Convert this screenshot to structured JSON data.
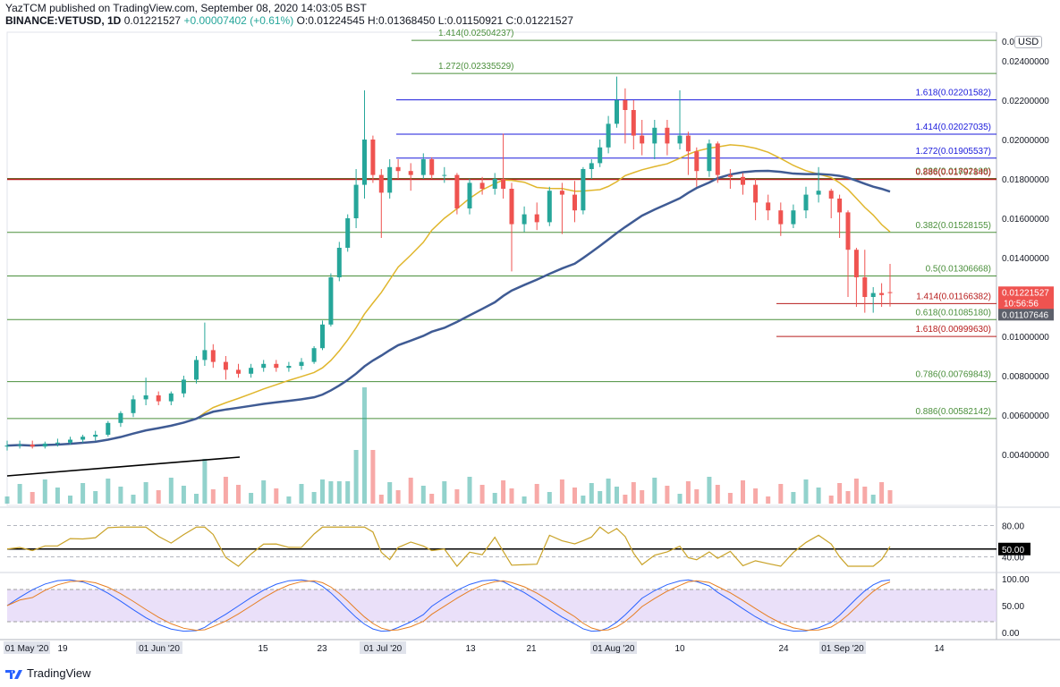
{
  "header": {
    "line1": "YazTCM published on TradingView.com, September 08, 2020 14:03:05 BST",
    "symbol": "BINANCE:VETUSD, 1D",
    "last": "0.01221527",
    "change": "+0.00007402 (+0.61%)",
    "ohlc": "O:0.01224545 H:0.01368450 L:0.01150921 C:0.01221527"
  },
  "brand": {
    "name": "TradingView",
    "icon": "tradingview-logo-icon"
  },
  "currency": "USD",
  "colors": {
    "up": "#26a69a",
    "down": "#ef5350",
    "fib_green": "#4a8f3b",
    "fib_blue": "#1a1adb",
    "fib_red": "#b71c1c",
    "sma_short": "#e0b62c",
    "sma_long": "#3f5b94",
    "rsi": "#c9a227",
    "stoch_k": "#2962ff",
    "stoch_d": "#e67e22",
    "stoch_band": "#e1d3f7"
  },
  "chart_data": {
    "type": "candlestick",
    "y_axis": {
      "labels": [
        "0.02400000",
        "0.02200000",
        "0.02000000",
        "0.01800000",
        "0.01600000",
        "0.01400000",
        "0.01000000",
        "0.00800000",
        "0.00600000",
        "0.00400000"
      ],
      "values": [
        0.024,
        0.022,
        0.02,
        0.018,
        0.016,
        0.014,
        0.01,
        0.008,
        0.006,
        0.004
      ],
      "top_partial": "0.0",
      "range": [
        0.0025,
        0.026
      ]
    },
    "x_axis": {
      "labels": [
        "01 May '20",
        "19",
        "01 Jun '20",
        "15",
        "23",
        "01 Jul '20",
        "13",
        "21",
        "01 Aug '20",
        "10",
        "24",
        "01 Sep '20",
        "14"
      ],
      "highlighted": [
        "01 May '20",
        "01 Jun '20",
        "01 Jul '20",
        "01 Aug '20",
        "01 Sep '20"
      ]
    },
    "price_tags": [
      {
        "label": "0.01221527",
        "sub": "10:56:56",
        "value": 0.01221527,
        "color": "#ef5350"
      },
      {
        "label": "0.01107646",
        "value": 0.01107646,
        "color": "#5d606b"
      }
    ],
    "fib_levels": [
      {
        "label": "1.414(0.02504237)",
        "value": 0.02504237,
        "color": "green",
        "side": "left"
      },
      {
        "label": "1.272(0.02335529)",
        "value": 0.02335529,
        "color": "green",
        "side": "left"
      },
      {
        "label": "1.618(0.02201582)",
        "value": 0.02201582,
        "color": "blue",
        "side": "right"
      },
      {
        "label": "1.414(0.02027035)",
        "value": 0.02027035,
        "color": "blue",
        "side": "right"
      },
      {
        "label": "1.272(0.01905537)",
        "value": 0.01905537,
        "color": "blue",
        "side": "right"
      },
      {
        "label": "0.236(0.01802198)",
        "value": 0.01802198,
        "color": "green",
        "side": "right"
      },
      {
        "label": "0.886(0.01797840)",
        "value": 0.0179784,
        "color": "red",
        "side": "right"
      },
      {
        "label": "0.382(0.01528155)",
        "value": 0.01528155,
        "color": "green",
        "side": "right"
      },
      {
        "label": "0.5(0.01306668)",
        "value": 0.01306668,
        "color": "green",
        "side": "right"
      },
      {
        "label": "1.414(0.01166382)",
        "value": 0.01166382,
        "color": "red",
        "side": "right"
      },
      {
        "label": "0.618(0.01085180)",
        "value": 0.0108518,
        "color": "green",
        "side": "right"
      },
      {
        "label": "1.618(0.00999630)",
        "value": 0.0099963,
        "color": "red",
        "side": "right"
      },
      {
        "label": "0.786(0.00769843)",
        "value": 0.00769843,
        "color": "green",
        "side": "right"
      },
      {
        "label": "0.886(0.00582142)",
        "value": 0.00582142,
        "color": "green",
        "side": "right"
      }
    ],
    "rsi": {
      "labels": [
        "80.00",
        "50.00",
        "40.00"
      ],
      "values": [
        80,
        50,
        40
      ]
    },
    "stoch_rsi": {
      "labels": [
        "100.00",
        "50.00",
        "0.00"
      ],
      "values": [
        100,
        50,
        0
      ]
    },
    "series": [
      {
        "name": "candles",
        "points": [
          {
            "d": 0,
            "o": 0.0044,
            "h": 0.0047,
            "l": 0.0042,
            "c": 0.00445
          },
          {
            "d": 3,
            "o": 0.00445,
            "h": 0.0047,
            "l": 0.0043,
            "c": 0.0045
          },
          {
            "d": 6,
            "o": 0.0045,
            "h": 0.0047,
            "l": 0.0043,
            "c": 0.0044
          },
          {
            "d": 9,
            "o": 0.0044,
            "h": 0.00465,
            "l": 0.0043,
            "c": 0.00455
          },
          {
            "d": 12,
            "o": 0.00455,
            "h": 0.0048,
            "l": 0.0044,
            "c": 0.0046
          },
          {
            "d": 15,
            "o": 0.0046,
            "h": 0.0049,
            "l": 0.0045,
            "c": 0.00475
          },
          {
            "d": 18,
            "o": 0.00475,
            "h": 0.005,
            "l": 0.0046,
            "c": 0.0049
          },
          {
            "d": 21,
            "o": 0.0049,
            "h": 0.0052,
            "l": 0.0047,
            "c": 0.005
          },
          {
            "d": 24,
            "o": 0.005,
            "h": 0.0057,
            "l": 0.0049,
            "c": 0.0056
          },
          {
            "d": 27,
            "o": 0.0056,
            "h": 0.0062,
            "l": 0.0054,
            "c": 0.0061
          },
          {
            "d": 30,
            "o": 0.0061,
            "h": 0.007,
            "l": 0.0059,
            "c": 0.0068
          },
          {
            "d": 33,
            "o": 0.0068,
            "h": 0.0079,
            "l": 0.0065,
            "c": 0.007
          },
          {
            "d": 36,
            "o": 0.007,
            "h": 0.0072,
            "l": 0.0065,
            "c": 0.0067
          },
          {
            "d": 39,
            "o": 0.0067,
            "h": 0.0072,
            "l": 0.0065,
            "c": 0.0071
          },
          {
            "d": 42,
            "o": 0.0071,
            "h": 0.008,
            "l": 0.0069,
            "c": 0.0078
          },
          {
            "d": 45,
            "o": 0.0078,
            "h": 0.009,
            "l": 0.0076,
            "c": 0.0088
          },
          {
            "d": 47,
            "o": 0.0088,
            "h": 0.0107,
            "l": 0.0085,
            "c": 0.0093
          },
          {
            "d": 49,
            "o": 0.0093,
            "h": 0.0096,
            "l": 0.0084,
            "c": 0.0087
          },
          {
            "d": 52,
            "o": 0.0087,
            "h": 0.009,
            "l": 0.0078,
            "c": 0.0083
          },
          {
            "d": 55,
            "o": 0.0083,
            "h": 0.0086,
            "l": 0.0079,
            "c": 0.0081
          },
          {
            "d": 58,
            "o": 0.0081,
            "h": 0.0086,
            "l": 0.0079,
            "c": 0.0084
          },
          {
            "d": 61,
            "o": 0.0084,
            "h": 0.0088,
            "l": 0.0082,
            "c": 0.0086
          },
          {
            "d": 64,
            "o": 0.0086,
            "h": 0.0088,
            "l": 0.0082,
            "c": 0.0084
          },
          {
            "d": 67,
            "o": 0.0084,
            "h": 0.0087,
            "l": 0.0082,
            "c": 0.0085
          },
          {
            "d": 70,
            "o": 0.0085,
            "h": 0.0089,
            "l": 0.0083,
            "c": 0.0087
          },
          {
            "d": 73,
            "o": 0.0087,
            "h": 0.0095,
            "l": 0.0086,
            "c": 0.0094
          },
          {
            "d": 75,
            "o": 0.0094,
            "h": 0.0108,
            "l": 0.0093,
            "c": 0.0106
          },
          {
            "d": 77,
            "o": 0.0106,
            "h": 0.0132,
            "l": 0.0105,
            "c": 0.013
          },
          {
            "d": 79,
            "o": 0.013,
            "h": 0.0148,
            "l": 0.0128,
            "c": 0.0145
          },
          {
            "d": 81,
            "o": 0.0145,
            "h": 0.0162,
            "l": 0.0143,
            "c": 0.016
          },
          {
            "d": 83,
            "o": 0.016,
            "h": 0.0185,
            "l": 0.0155,
            "c": 0.0177
          },
          {
            "d": 85,
            "o": 0.0177,
            "h": 0.0225,
            "l": 0.017,
            "c": 0.02
          },
          {
            "d": 87,
            "o": 0.02,
            "h": 0.0202,
            "l": 0.0178,
            "c": 0.0182
          },
          {
            "d": 89,
            "o": 0.0182,
            "h": 0.0185,
            "l": 0.015,
            "c": 0.0173
          },
          {
            "d": 91,
            "o": 0.0173,
            "h": 0.019,
            "l": 0.017,
            "c": 0.0186
          },
          {
            "d": 93,
            "o": 0.0186,
            "h": 0.019,
            "l": 0.018,
            "c": 0.0184
          },
          {
            "d": 96,
            "o": 0.0184,
            "h": 0.0188,
            "l": 0.0174,
            "c": 0.0182
          },
          {
            "d": 99,
            "o": 0.0182,
            "h": 0.0193,
            "l": 0.018,
            "c": 0.019
          },
          {
            "d": 101,
            "o": 0.019,
            "h": 0.0191,
            "l": 0.018,
            "c": 0.0182
          },
          {
            "d": 104,
            "o": 0.0182,
            "h": 0.0186,
            "l": 0.0178,
            "c": 0.0182
          },
          {
            "d": 107,
            "o": 0.0182,
            "h": 0.0183,
            "l": 0.0162,
            "c": 0.0165
          },
          {
            "d": 110,
            "o": 0.0165,
            "h": 0.018,
            "l": 0.0162,
            "c": 0.0178
          },
          {
            "d": 113,
            "o": 0.0178,
            "h": 0.0181,
            "l": 0.0172,
            "c": 0.0175
          },
          {
            "d": 116,
            "o": 0.0175,
            "h": 0.0183,
            "l": 0.0172,
            "c": 0.018
          },
          {
            "d": 118,
            "o": 0.018,
            "h": 0.0203,
            "l": 0.017,
            "c": 0.0175
          },
          {
            "d": 120,
            "o": 0.0175,
            "h": 0.0178,
            "l": 0.0133,
            "c": 0.0157
          },
          {
            "d": 123,
            "o": 0.0157,
            "h": 0.0166,
            "l": 0.0153,
            "c": 0.0162
          },
          {
            "d": 126,
            "o": 0.0162,
            "h": 0.0168,
            "l": 0.0154,
            "c": 0.0158
          },
          {
            "d": 129,
            "o": 0.0158,
            "h": 0.0176,
            "l": 0.0156,
            "c": 0.0174
          },
          {
            "d": 132,
            "o": 0.0174,
            "h": 0.0178,
            "l": 0.0152,
            "c": 0.0172
          },
          {
            "d": 135,
            "o": 0.0172,
            "h": 0.0179,
            "l": 0.0158,
            "c": 0.0164
          },
          {
            "d": 137,
            "o": 0.0164,
            "h": 0.0186,
            "l": 0.0162,
            "c": 0.0185
          },
          {
            "d": 139,
            "o": 0.0185,
            "h": 0.019,
            "l": 0.018,
            "c": 0.0188
          },
          {
            "d": 141,
            "o": 0.0188,
            "h": 0.02,
            "l": 0.0186,
            "c": 0.0196
          },
          {
            "d": 143,
            "o": 0.0196,
            "h": 0.0212,
            "l": 0.0193,
            "c": 0.0208
          },
          {
            "d": 145,
            "o": 0.0208,
            "h": 0.0232,
            "l": 0.0206,
            "c": 0.022
          },
          {
            "d": 147,
            "o": 0.022,
            "h": 0.0226,
            "l": 0.0198,
            "c": 0.0215
          },
          {
            "d": 149,
            "o": 0.0215,
            "h": 0.022,
            "l": 0.0195,
            "c": 0.0202
          },
          {
            "d": 151,
            "o": 0.0202,
            "h": 0.021,
            "l": 0.0192,
            "c": 0.0198
          },
          {
            "d": 154,
            "o": 0.0198,
            "h": 0.021,
            "l": 0.019,
            "c": 0.0206
          },
          {
            "d": 157,
            "o": 0.0206,
            "h": 0.021,
            "l": 0.0192,
            "c": 0.0198
          },
          {
            "d": 160,
            "o": 0.0198,
            "h": 0.0225,
            "l": 0.0195,
            "c": 0.0202
          },
          {
            "d": 162,
            "o": 0.0202,
            "h": 0.0204,
            "l": 0.0182,
            "c": 0.0194
          },
          {
            "d": 164,
            "o": 0.0194,
            "h": 0.0196,
            "l": 0.0176,
            "c": 0.0184
          },
          {
            "d": 167,
            "o": 0.0184,
            "h": 0.02,
            "l": 0.0181,
            "c": 0.0198
          },
          {
            "d": 169,
            "o": 0.0198,
            "h": 0.0199,
            "l": 0.0178,
            "c": 0.0182
          },
          {
            "d": 172,
            "o": 0.0182,
            "h": 0.0185,
            "l": 0.0175,
            "c": 0.0181
          },
          {
            "d": 175,
            "o": 0.0181,
            "h": 0.0183,
            "l": 0.0172,
            "c": 0.0177
          },
          {
            "d": 178,
            "o": 0.0177,
            "h": 0.018,
            "l": 0.0159,
            "c": 0.0168
          },
          {
            "d": 181,
            "o": 0.0168,
            "h": 0.0172,
            "l": 0.0159,
            "c": 0.0164
          },
          {
            "d": 184,
            "o": 0.0164,
            "h": 0.0168,
            "l": 0.0151,
            "c": 0.0157
          },
          {
            "d": 187,
            "o": 0.0157,
            "h": 0.0167,
            "l": 0.0155,
            "c": 0.0164
          },
          {
            "d": 190,
            "o": 0.0164,
            "h": 0.0176,
            "l": 0.016,
            "c": 0.0172
          },
          {
            "d": 193,
            "o": 0.0172,
            "h": 0.0186,
            "l": 0.0168,
            "c": 0.0174
          },
          {
            "d": 196,
            "o": 0.0174,
            "h": 0.0175,
            "l": 0.016,
            "c": 0.017
          },
          {
            "d": 198,
            "o": 0.017,
            "h": 0.0172,
            "l": 0.015,
            "c": 0.0163
          },
          {
            "d": 200,
            "o": 0.0163,
            "h": 0.0164,
            "l": 0.012,
            "c": 0.0144
          },
          {
            "d": 202,
            "o": 0.0144,
            "h": 0.0145,
            "l": 0.0115,
            "c": 0.013
          },
          {
            "d": 204,
            "o": 0.013,
            "h": 0.0144,
            "l": 0.0112,
            "c": 0.012
          },
          {
            "d": 206,
            "o": 0.012,
            "h": 0.0125,
            "l": 0.0112,
            "c": 0.0122
          },
          {
            "d": 208,
            "o": 0.0122,
            "h": 0.0127,
            "l": 0.0115,
            "c": 0.0121
          },
          {
            "d": 210,
            "o": 0.01224545,
            "h": 0.0136845,
            "l": 0.01150921,
            "c": 0.01221527
          }
        ]
      }
    ]
  }
}
